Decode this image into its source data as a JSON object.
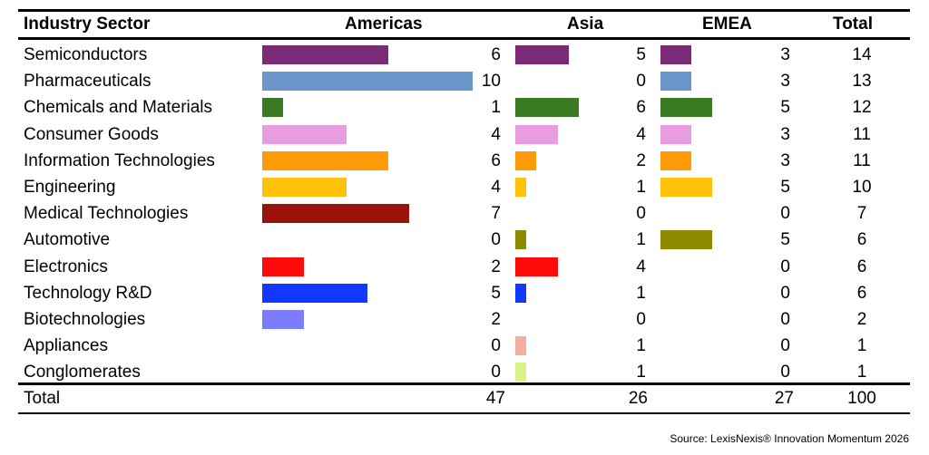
{
  "chart_data": {
    "type": "table",
    "columns": [
      "Industry Sector",
      "Americas",
      "Asia",
      "EMEA",
      "Total"
    ],
    "rows": [
      {
        "sector": "Semiconductors",
        "americas": 6,
        "asia": 5,
        "emea": 3,
        "total": 14,
        "color": "#7b2a77"
      },
      {
        "sector": "Pharmaceuticals",
        "americas": 10,
        "asia": 0,
        "emea": 3,
        "total": 13,
        "color": "#6a96cc"
      },
      {
        "sector": "Chemicals and Materials",
        "americas": 1,
        "asia": 6,
        "emea": 5,
        "total": 12,
        "color": "#3a7a22"
      },
      {
        "sector": "Consumer Goods",
        "americas": 4,
        "asia": 4,
        "emea": 3,
        "total": 11,
        "color": "#e89de0"
      },
      {
        "sector": "Information Technologies",
        "americas": 6,
        "asia": 2,
        "emea": 3,
        "total": 11,
        "color": "#ff9a0a"
      },
      {
        "sector": "Engineering",
        "americas": 4,
        "asia": 1,
        "emea": 5,
        "total": 10,
        "color": "#ffc20a"
      },
      {
        "sector": "Medical Technologies",
        "americas": 7,
        "asia": 0,
        "emea": 0,
        "total": 7,
        "color": "#9a1208"
      },
      {
        "sector": "Automotive",
        "americas": 0,
        "asia": 1,
        "emea": 5,
        "total": 6,
        "color": "#8f8a00"
      },
      {
        "sector": "Electronics",
        "americas": 2,
        "asia": 4,
        "emea": 0,
        "total": 6,
        "color": "#ff0a0a"
      },
      {
        "sector": "Technology R&D",
        "americas": 5,
        "asia": 1,
        "emea": 0,
        "total": 6,
        "color": "#1238ff"
      },
      {
        "sector": "Biotechnologies",
        "americas": 2,
        "asia": 0,
        "emea": 0,
        "total": 2,
        "color": "#7c7cff"
      },
      {
        "sector": "Appliances",
        "americas": 0,
        "asia": 1,
        "emea": 0,
        "total": 1,
        "color": "#f3b0a0"
      },
      {
        "sector": "Conglomerates",
        "americas": 0,
        "asia": 1,
        "emea": 0,
        "total": 1,
        "color": "#d8f58a"
      }
    ],
    "totals": {
      "label": "Total",
      "americas": 47,
      "asia": 26,
      "emea": 27,
      "total": 100
    }
  },
  "source_text": "Source: LexisNexis® Innovation Momentum 2026"
}
